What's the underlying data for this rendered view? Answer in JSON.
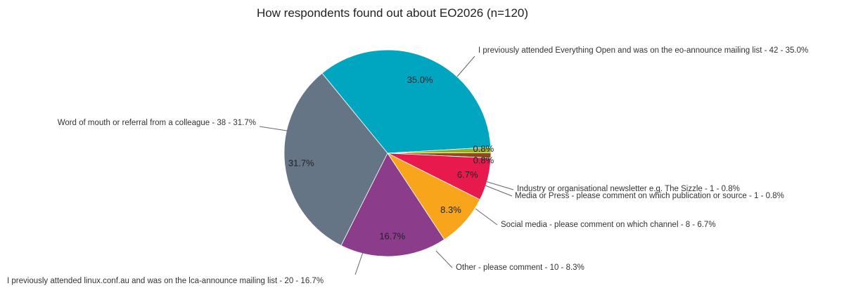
{
  "chart_data": {
    "type": "pie",
    "title": "How respondents found out about EO2026 (n=120)",
    "slices": [
      {
        "label": "I previously attended Everything Open and was on the eo-announce mailing list - 42 - 35.0%",
        "count": 42,
        "percent": 35.0,
        "pct_label": "35.0%",
        "color": "#00a6bf"
      },
      {
        "label": "Industry or organisational newsletter e.g. The Sizzle - 1 - 0.8%",
        "count": 1,
        "percent": 0.8,
        "pct_label": "0.8%",
        "color": "#9aae2b"
      },
      {
        "label": "Media or Press - please comment on which publication or source - 1 - 0.8%",
        "count": 1,
        "percent": 0.8,
        "pct_label": "0.8%",
        "color": "#8a4b1f"
      },
      {
        "label": "Social media - please comment on which channel - 8 - 6.7%",
        "count": 8,
        "percent": 6.7,
        "pct_label": "6.7%",
        "color": "#e8194d"
      },
      {
        "label": "Other - please comment - 10 - 8.3%",
        "count": 10,
        "percent": 8.3,
        "pct_label": "8.3%",
        "color": "#f8a51c"
      },
      {
        "label": "I previously attended linux.conf.au and was on the lca-announce mailing list - 20 - 16.7%",
        "count": 20,
        "percent": 16.7,
        "pct_label": "16.7%",
        "color": "#8b3d8c"
      },
      {
        "label": "Word of mouth or referral from a colleague - 38 - 31.7%",
        "count": 38,
        "percent": 31.7,
        "pct_label": "31.7%",
        "color": "#667585"
      }
    ]
  }
}
